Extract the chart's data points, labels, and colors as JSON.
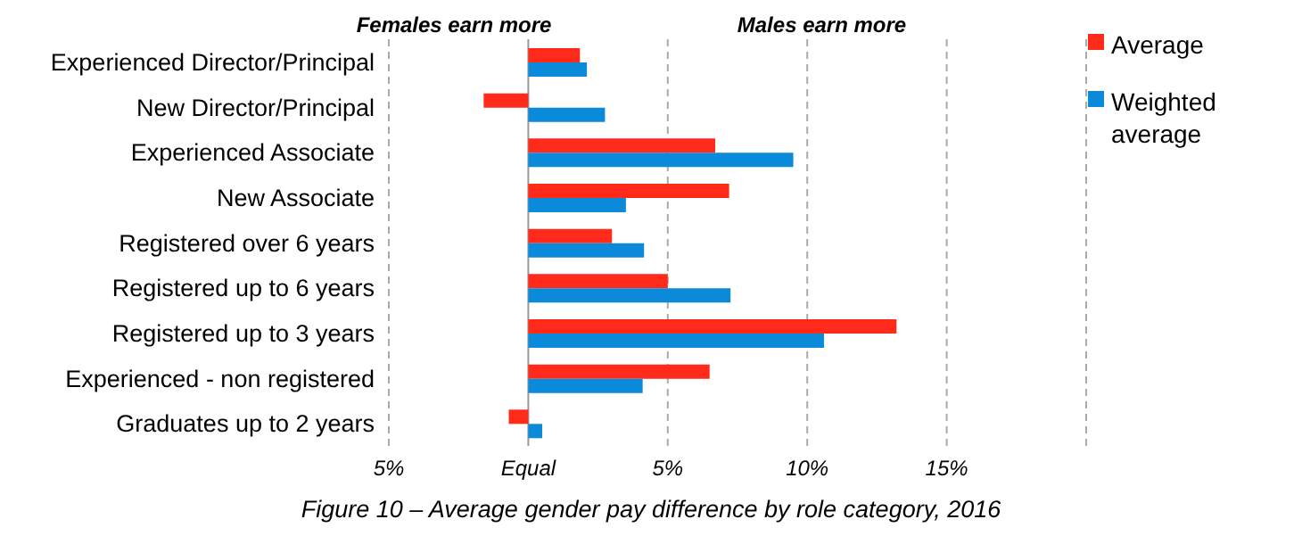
{
  "chart_data": {
    "type": "bar",
    "orientation": "horizontal",
    "title": "Figure 10 – Average gender pay difference by role category, 2016",
    "categories": [
      "Experienced Director/Principal",
      "New Director/Principal",
      "Experienced Associate",
      "New Associate",
      "Registered over 6 years",
      "Registered up to 6 years",
      "Registered up to 3 years",
      "Experienced - non registered",
      "Graduates up to 2 years"
    ],
    "series": [
      {
        "name": "Average",
        "color": "#ff2a1a",
        "values": [
          1.85,
          -1.6,
          6.7,
          7.2,
          3.0,
          5.0,
          13.2,
          6.5,
          -0.7
        ]
      },
      {
        "name": "Weighted average",
        "color": "#0a8ad8",
        "values": [
          2.1,
          2.75,
          9.5,
          3.5,
          4.15,
          7.25,
          10.6,
          4.1,
          0.5
        ]
      }
    ],
    "xlim": [
      -5,
      20
    ],
    "xticks": [
      {
        "value": -5,
        "label": "5%"
      },
      {
        "value": 0,
        "label": "Equal"
      },
      {
        "value": 5,
        "label": "5%"
      },
      {
        "value": 10,
        "label": "10%"
      },
      {
        "value": 15,
        "label": "15%"
      },
      {
        "value": 20,
        "label": null
      }
    ],
    "annotations": [
      "Females earn more",
      "Males earn more"
    ],
    "grid": "x",
    "legend": "top right"
  }
}
